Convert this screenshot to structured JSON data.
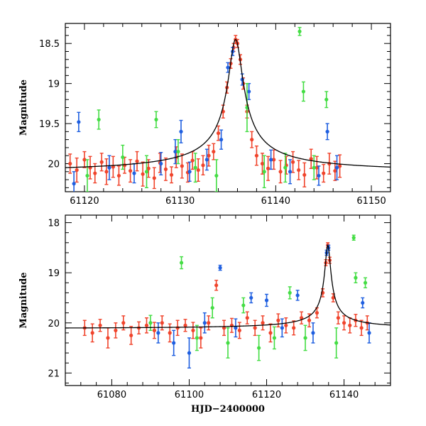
{
  "colors": {
    "red": "#f0442c",
    "blue": "#1f5fe0",
    "green": "#44dd44",
    "model": "#000000"
  },
  "chart_data": [
    {
      "type": "scatter",
      "title": "",
      "xlabel": "",
      "ylabel": "Magnitude",
      "xlim": [
        61118,
        61152
      ],
      "ylim": [
        20.35,
        18.25
      ],
      "inverted_y": true,
      "xticks": [
        61120,
        61130,
        61140,
        61150
      ],
      "xtick_labels": [
        "61120",
        "61130",
        "61140",
        "61150"
      ],
      "yticks": [
        18.5,
        19,
        19.5,
        20
      ],
      "ytick_labels": [
        "18.5",
        "19",
        "19.5",
        "20"
      ],
      "model_curve": {
        "baseline": 20.12,
        "peak_time": 61135.8,
        "peak_mag": 18.45,
        "width": 0.75
      },
      "series": [
        {
          "name": "red",
          "color": "red",
          "x": [
            61118.5,
            61119.2,
            61120.0,
            61120.6,
            61121.1,
            61121.8,
            61122.3,
            61123.0,
            61123.6,
            61124.2,
            61124.8,
            61125.5,
            61126.1,
            61126.7,
            61127.3,
            61127.9,
            61128.5,
            61129.1,
            61129.6,
            61130.2,
            61130.8,
            61131.3,
            61131.9,
            61132.4,
            61133.0,
            61133.5,
            61134.0,
            61134.5,
            61134.9,
            61135.3,
            61135.6,
            61135.8,
            61136.0,
            61136.3,
            61136.6,
            61137.0,
            61137.5,
            61138.0,
            61138.6,
            61139.2,
            61139.8,
            61140.5,
            61141.1,
            61141.8,
            61142.4,
            61143.0,
            61143.7,
            61144.3,
            61145.0,
            61145.6,
            61146.2,
            61146.7
          ],
          "y": [
            20.0,
            20.08,
            19.95,
            20.05,
            20.12,
            19.98,
            20.1,
            20.04,
            20.15,
            20.02,
            20.09,
            19.97,
            20.13,
            20.06,
            20.18,
            19.99,
            20.07,
            20.14,
            19.92,
            20.03,
            20.11,
            19.96,
            20.08,
            20.02,
            19.9,
            19.85,
            19.62,
            19.35,
            19.05,
            18.75,
            18.55,
            18.45,
            18.5,
            18.7,
            19.0,
            19.35,
            19.7,
            19.9,
            20.0,
            20.06,
            19.95,
            20.1,
            20.02,
            19.98,
            20.08,
            20.14,
            19.94,
            20.05,
            20.12,
            20.0,
            20.09,
            20.03
          ],
          "err": [
            0.12,
            0.15,
            0.1,
            0.14,
            0.12,
            0.11,
            0.16,
            0.13,
            0.12,
            0.1,
            0.14,
            0.12,
            0.15,
            0.11,
            0.13,
            0.12,
            0.14,
            0.1,
            0.13,
            0.15,
            0.12,
            0.11,
            0.14,
            0.12,
            0.13,
            0.1,
            0.09,
            0.08,
            0.07,
            0.06,
            0.05,
            0.05,
            0.05,
            0.06,
            0.07,
            0.08,
            0.1,
            0.12,
            0.13,
            0.15,
            0.12,
            0.14,
            0.11,
            0.13,
            0.12,
            0.15,
            0.12,
            0.14,
            0.11,
            0.13,
            0.12,
            0.14
          ]
        },
        {
          "name": "blue",
          "color": "blue",
          "x": [
            61118.9,
            61119.4,
            61122.6,
            61125.2,
            61128.0,
            61129.5,
            61130.1,
            61131.0,
            61132.8,
            61134.3,
            61135.0,
            61135.5,
            61136.5,
            61137.2,
            61139.5,
            61141.5,
            61144.5,
            61145.4,
            61146.4
          ],
          "y": [
            20.25,
            19.48,
            20.05,
            20.12,
            20.0,
            19.85,
            19.6,
            20.1,
            19.95,
            19.7,
            18.8,
            18.6,
            18.95,
            19.1,
            19.95,
            20.1,
            20.15,
            19.6,
            20.05
          ],
          "err": [
            0.15,
            0.12,
            0.15,
            0.12,
            0.14,
            0.15,
            0.14,
            0.12,
            0.13,
            0.12,
            0.06,
            0.05,
            0.07,
            0.1,
            0.12,
            0.15,
            0.12,
            0.1,
            0.15
          ]
        },
        {
          "name": "green",
          "color": "green",
          "x": [
            61120.3,
            61121.5,
            61124.0,
            61126.5,
            61127.5,
            61129.8,
            61131.6,
            61133.8,
            61137.0,
            61138.8,
            61141.0,
            61142.5,
            61142.9,
            61144.0,
            61145.3
          ],
          "y": [
            20.15,
            19.45,
            19.92,
            20.1,
            19.45,
            19.85,
            20.05,
            20.15,
            19.3,
            20.1,
            20.05,
            18.35,
            19.1,
            20.05,
            19.2
          ],
          "err": [
            0.2,
            0.12,
            0.15,
            0.2,
            0.1,
            0.15,
            0.18,
            0.2,
            0.3,
            0.2,
            0.18,
            0.05,
            0.12,
            0.15,
            0.1
          ]
        }
      ]
    },
    {
      "type": "scatter",
      "title": "",
      "xlabel": "HJD−2400000",
      "ylabel": "Magnitude",
      "xlim": [
        61068,
        61152
      ],
      "ylim": [
        21.25,
        17.85
      ],
      "inverted_y": true,
      "xticks": [
        61080,
        61100,
        61120,
        61140
      ],
      "xtick_labels": [
        "61080",
        "61100",
        "61120",
        "61140"
      ],
      "yticks": [
        18,
        19,
        20,
        21
      ],
      "ytick_labels": [
        "18",
        "19",
        "20",
        "21"
      ],
      "model_curve": {
        "baseline": 20.12,
        "peak_time": 61135.8,
        "peak_mag": 18.45,
        "width": 0.75
      },
      "series": [
        {
          "name": "red",
          "color": "red",
          "x": [
            61073,
            61075,
            61077,
            61079,
            61081,
            61083,
            61085,
            61087,
            61089,
            61091,
            61093,
            61095,
            61097,
            61099,
            61101,
            61103,
            61105,
            61107,
            61109,
            61111,
            61113,
            61115,
            61117,
            61119,
            61121,
            61123,
            61125,
            61127,
            61129,
            61131,
            61133,
            61134.5,
            61135.3,
            61135.8,
            61136.3,
            61137.2,
            61138.5,
            61140,
            61141.5,
            61143,
            61144.5,
            61146
          ],
          "y": [
            20.1,
            20.2,
            20.05,
            20.3,
            20.15,
            20.0,
            20.25,
            20.1,
            20.05,
            20.15,
            20.0,
            20.2,
            20.1,
            20.05,
            20.15,
            20.3,
            20.0,
            19.25,
            20.1,
            20.05,
            20.15,
            19.9,
            20.1,
            20.0,
            20.2,
            19.95,
            20.05,
            20.1,
            19.9,
            19.95,
            19.8,
            19.4,
            18.8,
            18.45,
            18.75,
            19.5,
            19.9,
            20.0,
            20.05,
            19.95,
            20.1,
            20.0
          ],
          "err": [
            0.15,
            0.18,
            0.12,
            0.2,
            0.15,
            0.14,
            0.18,
            0.12,
            0.15,
            0.16,
            0.14,
            0.18,
            0.15,
            0.12,
            0.16,
            0.2,
            0.14,
            0.1,
            0.15,
            0.14,
            0.16,
            0.12,
            0.15,
            0.14,
            0.18,
            0.13,
            0.15,
            0.14,
            0.12,
            0.13,
            0.1,
            0.08,
            0.06,
            0.05,
            0.06,
            0.08,
            0.12,
            0.14,
            0.15,
            0.12,
            0.15,
            0.14
          ]
        },
        {
          "name": "blue",
          "color": "blue",
          "x": [
            61092,
            61096,
            61100,
            61104,
            61108,
            61112,
            61116,
            61120,
            61124,
            61128,
            61132,
            61135.5,
            61136,
            61144.8,
            61146.5
          ],
          "y": [
            20.2,
            20.4,
            20.6,
            20.0,
            18.9,
            20.1,
            19.5,
            19.55,
            20.1,
            19.45,
            20.2,
            18.6,
            18.5,
            19.6,
            20.2
          ],
          "err": [
            0.2,
            0.25,
            0.3,
            0.2,
            0.05,
            0.18,
            0.1,
            0.12,
            0.18,
            0.1,
            0.2,
            0.05,
            0.05,
            0.1,
            0.2
          ]
        },
        {
          "name": "green",
          "color": "green",
          "x": [
            61090,
            61098,
            61102,
            61106,
            61110,
            61114,
            61118,
            61122,
            61126,
            61130,
            61138,
            61142.5,
            61143,
            61145.5
          ],
          "y": [
            20.0,
            18.8,
            20.3,
            19.7,
            20.4,
            19.65,
            20.5,
            20.3,
            19.4,
            20.3,
            20.4,
            18.3,
            19.1,
            19.2
          ],
          "err": [
            0.15,
            0.12,
            0.25,
            0.2,
            0.3,
            0.15,
            0.25,
            0.22,
            0.12,
            0.25,
            0.3,
            0.05,
            0.1,
            0.1
          ]
        }
      ]
    }
  ]
}
